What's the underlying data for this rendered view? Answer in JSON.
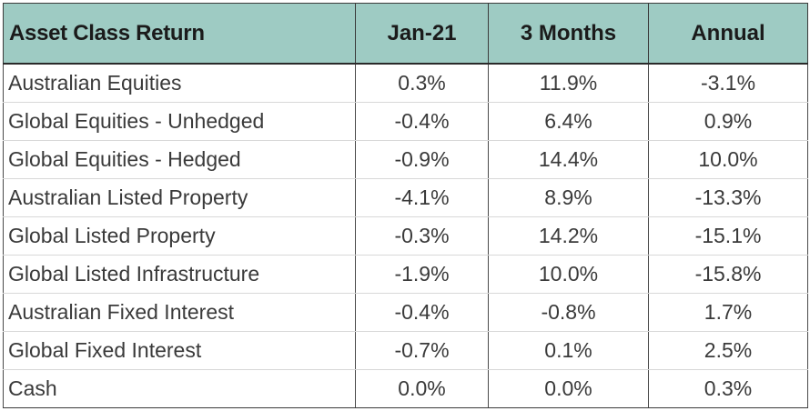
{
  "table": {
    "headers": [
      "Asset Class Return",
      "Jan-21",
      "3 Months",
      "Annual"
    ],
    "rows": [
      [
        "Australian Equities",
        "0.3%",
        "11.9%",
        "-3.1%"
      ],
      [
        "Global Equities - Unhedged",
        "-0.4%",
        "6.4%",
        "0.9%"
      ],
      [
        "Global Equities - Hedged",
        "-0.9%",
        "14.4%",
        "10.0%"
      ],
      [
        "Australian Listed Property",
        "-4.1%",
        "8.9%",
        "-13.3%"
      ],
      [
        "Global Listed Property",
        "-0.3%",
        "14.2%",
        "-15.1%"
      ],
      [
        "Global Listed Infrastructure",
        "-1.9%",
        "10.0%",
        "-15.8%"
      ],
      [
        "Australian Fixed Interest",
        "-0.4%",
        "-0.8%",
        "1.7%"
      ],
      [
        "Global Fixed Interest",
        "-0.7%",
        "0.1%",
        "2.5%"
      ],
      [
        "Cash",
        "0.0%",
        "0.0%",
        "0.3%"
      ]
    ]
  },
  "colors": {
    "header_background": "#9ecbc3",
    "header_text": "#1b1b1b",
    "body_text": "#3a3a3a"
  }
}
